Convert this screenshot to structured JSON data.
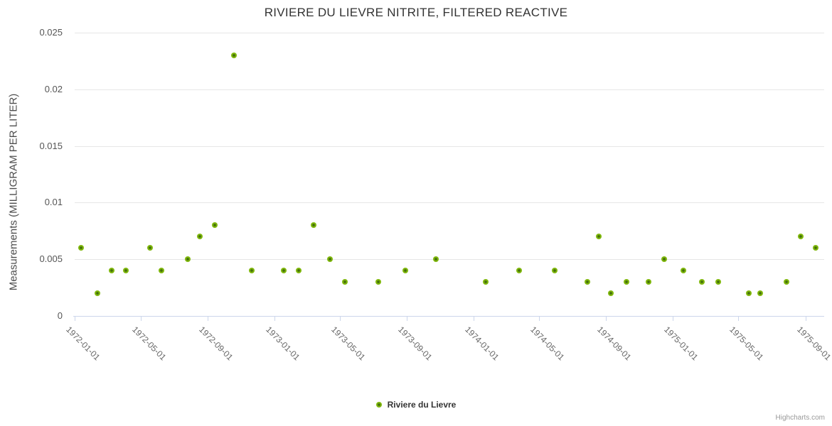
{
  "title": "RIVIERE DU LIEVRE NITRITE, FILTERED REACTIVE",
  "legend": {
    "label": "Riviere du Lievre"
  },
  "credits": "Highcharts.com",
  "colors": {
    "point_outer": "#7fb70d",
    "point_inner": "#44710a",
    "grid": "#e6e6e6",
    "axis_line": "#ccd6eb",
    "title_text": "#333333",
    "label_text": "#666666"
  },
  "chart_data": {
    "type": "scatter",
    "title": "RIVIERE DU LIEVRE NITRITE, FILTERED REACTIVE",
    "xlabel": "",
    "ylabel": "Measurements (MILLIGRAM PER LITER)",
    "ylim": [
      0,
      0.025
    ],
    "y_tick_labels": [
      "0",
      "0.005",
      "0.01",
      "0.015",
      "0.02",
      "0.025"
    ],
    "y_tick_values": [
      0,
      0.005,
      0.01,
      0.015,
      0.02,
      0.025
    ],
    "x_tick_labels": [
      "1972-01-01",
      "1972-05-01",
      "1972-09-01",
      "1973-01-01",
      "1973-05-01",
      "1973-09-01",
      "1974-01-01",
      "1974-05-01",
      "1974-09-01",
      "1975-01-01",
      "1975-05-01",
      "1975-09-01"
    ],
    "x_range": [
      "1972-01-01",
      "1975-09-01"
    ],
    "grid": true,
    "legend_position": "bottom-center",
    "series": [
      {
        "name": "Riviere du Lievre",
        "color": "#7fb70d",
        "points": [
          {
            "date": "1972-01-13",
            "value": 0.006
          },
          {
            "date": "1972-02-12",
            "value": 0.002
          },
          {
            "date": "1972-03-09",
            "value": 0.004
          },
          {
            "date": "1972-04-04",
            "value": 0.004
          },
          {
            "date": "1972-05-18",
            "value": 0.006
          },
          {
            "date": "1972-06-08",
            "value": 0.004
          },
          {
            "date": "1972-07-26",
            "value": 0.005
          },
          {
            "date": "1972-08-17",
            "value": 0.007
          },
          {
            "date": "1972-09-14",
            "value": 0.008
          },
          {
            "date": "1972-10-19",
            "value": 0.023
          },
          {
            "date": "1972-11-20",
            "value": 0.004
          },
          {
            "date": "1973-01-18",
            "value": 0.004
          },
          {
            "date": "1973-02-14",
            "value": 0.004
          },
          {
            "date": "1973-03-14",
            "value": 0.008
          },
          {
            "date": "1973-04-13",
            "value": 0.005
          },
          {
            "date": "1973-05-10",
            "value": 0.003
          },
          {
            "date": "1973-07-11",
            "value": 0.003
          },
          {
            "date": "1973-08-29",
            "value": 0.004
          },
          {
            "date": "1973-10-24",
            "value": 0.005
          },
          {
            "date": "1974-01-23",
            "value": 0.003
          },
          {
            "date": "1974-03-26",
            "value": 0.004
          },
          {
            "date": "1974-05-30",
            "value": 0.004
          },
          {
            "date": "1974-07-29",
            "value": 0.003
          },
          {
            "date": "1974-08-19",
            "value": 0.007
          },
          {
            "date": "1974-09-09",
            "value": 0.002
          },
          {
            "date": "1974-10-08",
            "value": 0.003
          },
          {
            "date": "1974-11-18",
            "value": 0.003
          },
          {
            "date": "1974-12-16",
            "value": 0.005
          },
          {
            "date": "1975-01-20",
            "value": 0.004
          },
          {
            "date": "1975-02-24",
            "value": 0.003
          },
          {
            "date": "1975-03-25",
            "value": 0.003
          },
          {
            "date": "1975-05-20",
            "value": 0.002
          },
          {
            "date": "1975-06-10",
            "value": 0.002
          },
          {
            "date": "1975-07-29",
            "value": 0.003
          },
          {
            "date": "1975-08-24",
            "value": 0.007
          },
          {
            "date": "1975-09-20",
            "value": 0.006
          }
        ]
      }
    ]
  }
}
